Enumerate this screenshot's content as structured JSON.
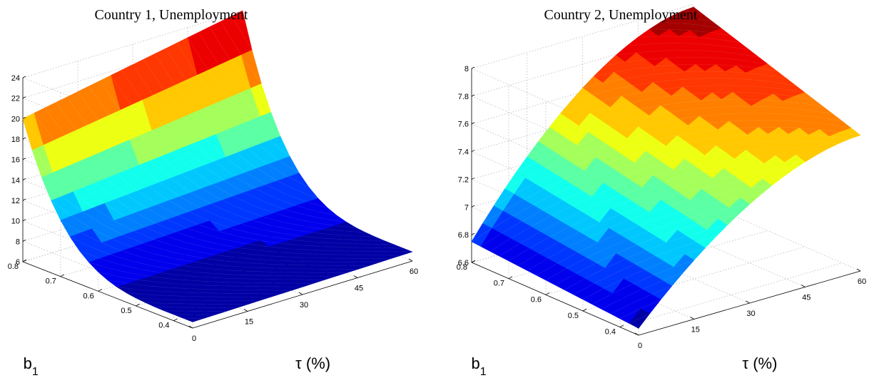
{
  "chart_data": [
    {
      "type": "surface",
      "title": "Country 1, Unemployment",
      "xlabel": "b",
      "xlabel_subscript": "1",
      "ylabel": "τ (%)",
      "zlabel": "",
      "xlim": [
        0.35,
        0.8
      ],
      "ylim": [
        0,
        60
      ],
      "zlim": [
        6,
        24
      ],
      "xticks": [
        "0.4",
        "0.5",
        "0.6",
        "0.7",
        "0.8"
      ],
      "yticks": [
        "0",
        "15",
        "30",
        "45",
        "60"
      ],
      "zticks": [
        "6",
        "8",
        "10",
        "12",
        "14",
        "16",
        "18",
        "20",
        "22",
        "24"
      ],
      "grid": true,
      "colormap": "jet",
      "corner_values": {
        "b_0.35_tau_0": 6.6,
        "b_0.8_tau_0": 20.0,
        "b_0.35_tau_60": 6.9,
        "b_0.8_tau_60": 24.0
      }
    },
    {
      "type": "surface",
      "title": "Country 2, Unemployment",
      "xlabel": "b",
      "xlabel_subscript": "1",
      "ylabel": "τ (%)",
      "zlabel": "",
      "xlim": [
        0.35,
        0.8
      ],
      "ylim": [
        0,
        60
      ],
      "zlim": [
        6.6,
        8
      ],
      "xticks": [
        "0.4",
        "0.5",
        "0.6",
        "0.7",
        "0.8"
      ],
      "yticks": [
        "0",
        "15",
        "30",
        "45",
        "60"
      ],
      "zticks": [
        "6.6",
        "6.8",
        "7",
        "7.2",
        "7.4",
        "7.6",
        "7.8",
        "8"
      ],
      "grid": true,
      "colormap": "jet",
      "corner_values": {
        "b_0.35_tau_0": 6.65,
        "b_0.8_tau_0": 6.75,
        "b_0.35_tau_60": 7.58,
        "b_0.8_tau_60": 7.98
      }
    }
  ]
}
